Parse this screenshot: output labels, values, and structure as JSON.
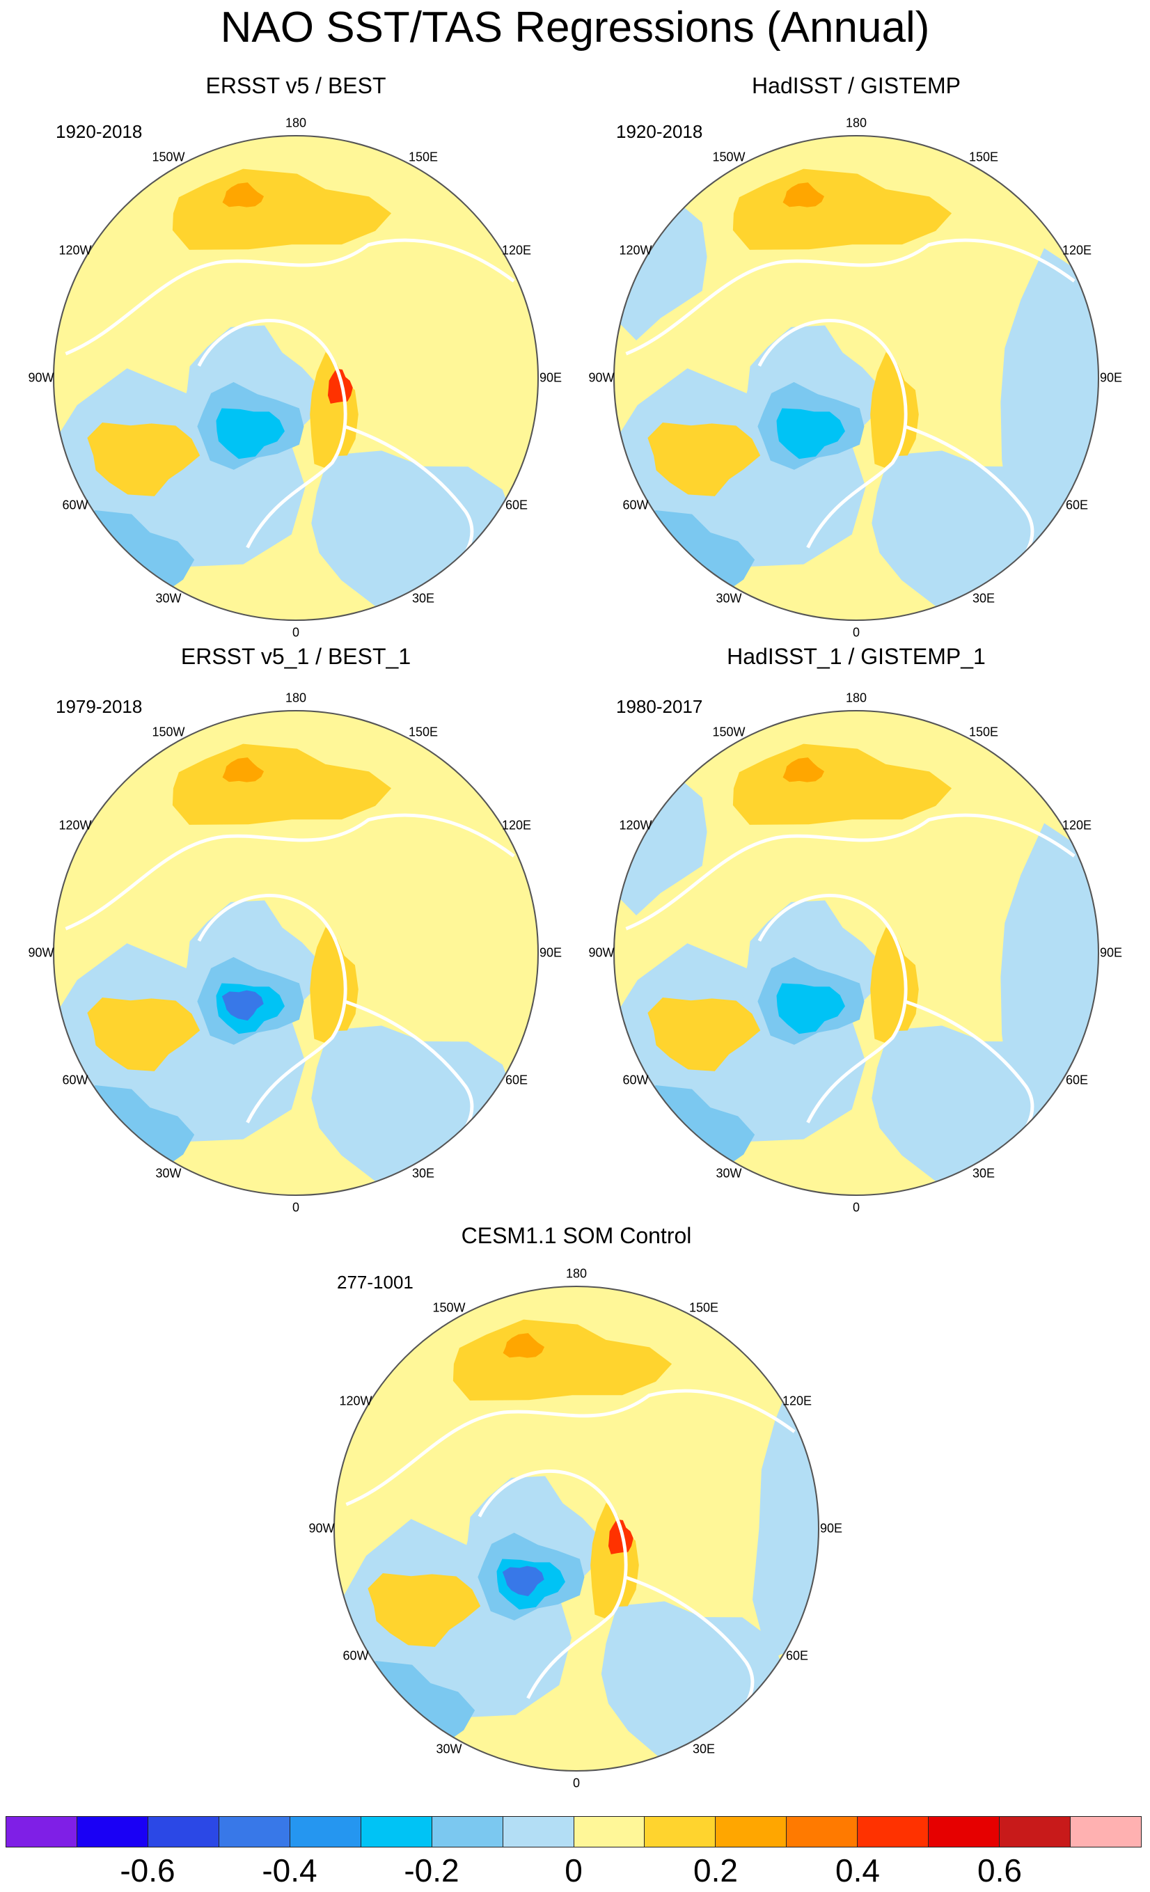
{
  "title": "NAO SST/TAS Regressions (Annual)",
  "lon_labels": [
    "180",
    "150E",
    "120E",
    "90E",
    "60E",
    "30E",
    "0",
    "30W",
    "60W",
    "90W",
    "120W",
    "150W"
  ],
  "panels": [
    {
      "title": "ERSST v5 / BEST",
      "period": "1920-2018"
    },
    {
      "title": "HadISST / GISTEMP",
      "period": "1920-2018"
    },
    {
      "title": "ERSST v5_1 / BEST_1",
      "period": "1979-2018"
    },
    {
      "title": "HadISST_1 / GISTEMP_1",
      "period": "1980-2017"
    },
    {
      "title": "CESM1.1 SOM Control",
      "period": "277-1001"
    }
  ],
  "colorbar": {
    "colors": [
      "#7f1fe6",
      "#1a00f5",
      "#2b48e6",
      "#3878e8",
      "#2596f0",
      "#00c3f5",
      "#7bc8f0",
      "#b3def5",
      "#fff798",
      "#ffd42e",
      "#ffa600",
      "#ff7a00",
      "#ff3200",
      "#e60000",
      "#c81a1a",
      "#ffb1b1"
    ],
    "labels": [
      "-0.6",
      "-0.4",
      "-0.2",
      "0",
      "0.2",
      "0.4",
      "0.6"
    ]
  },
  "palette": {
    "light_yellow": "#fff798",
    "orange": "#ffd42e",
    "dark_orange": "#ffa600",
    "light_blue": "#b3def5",
    "mid_blue": "#7bc8f0",
    "cyan": "#00c3f5",
    "blue": "#3878e8",
    "red": "#ff3200",
    "coast": "#ffffff",
    "outline": "#555555"
  }
}
